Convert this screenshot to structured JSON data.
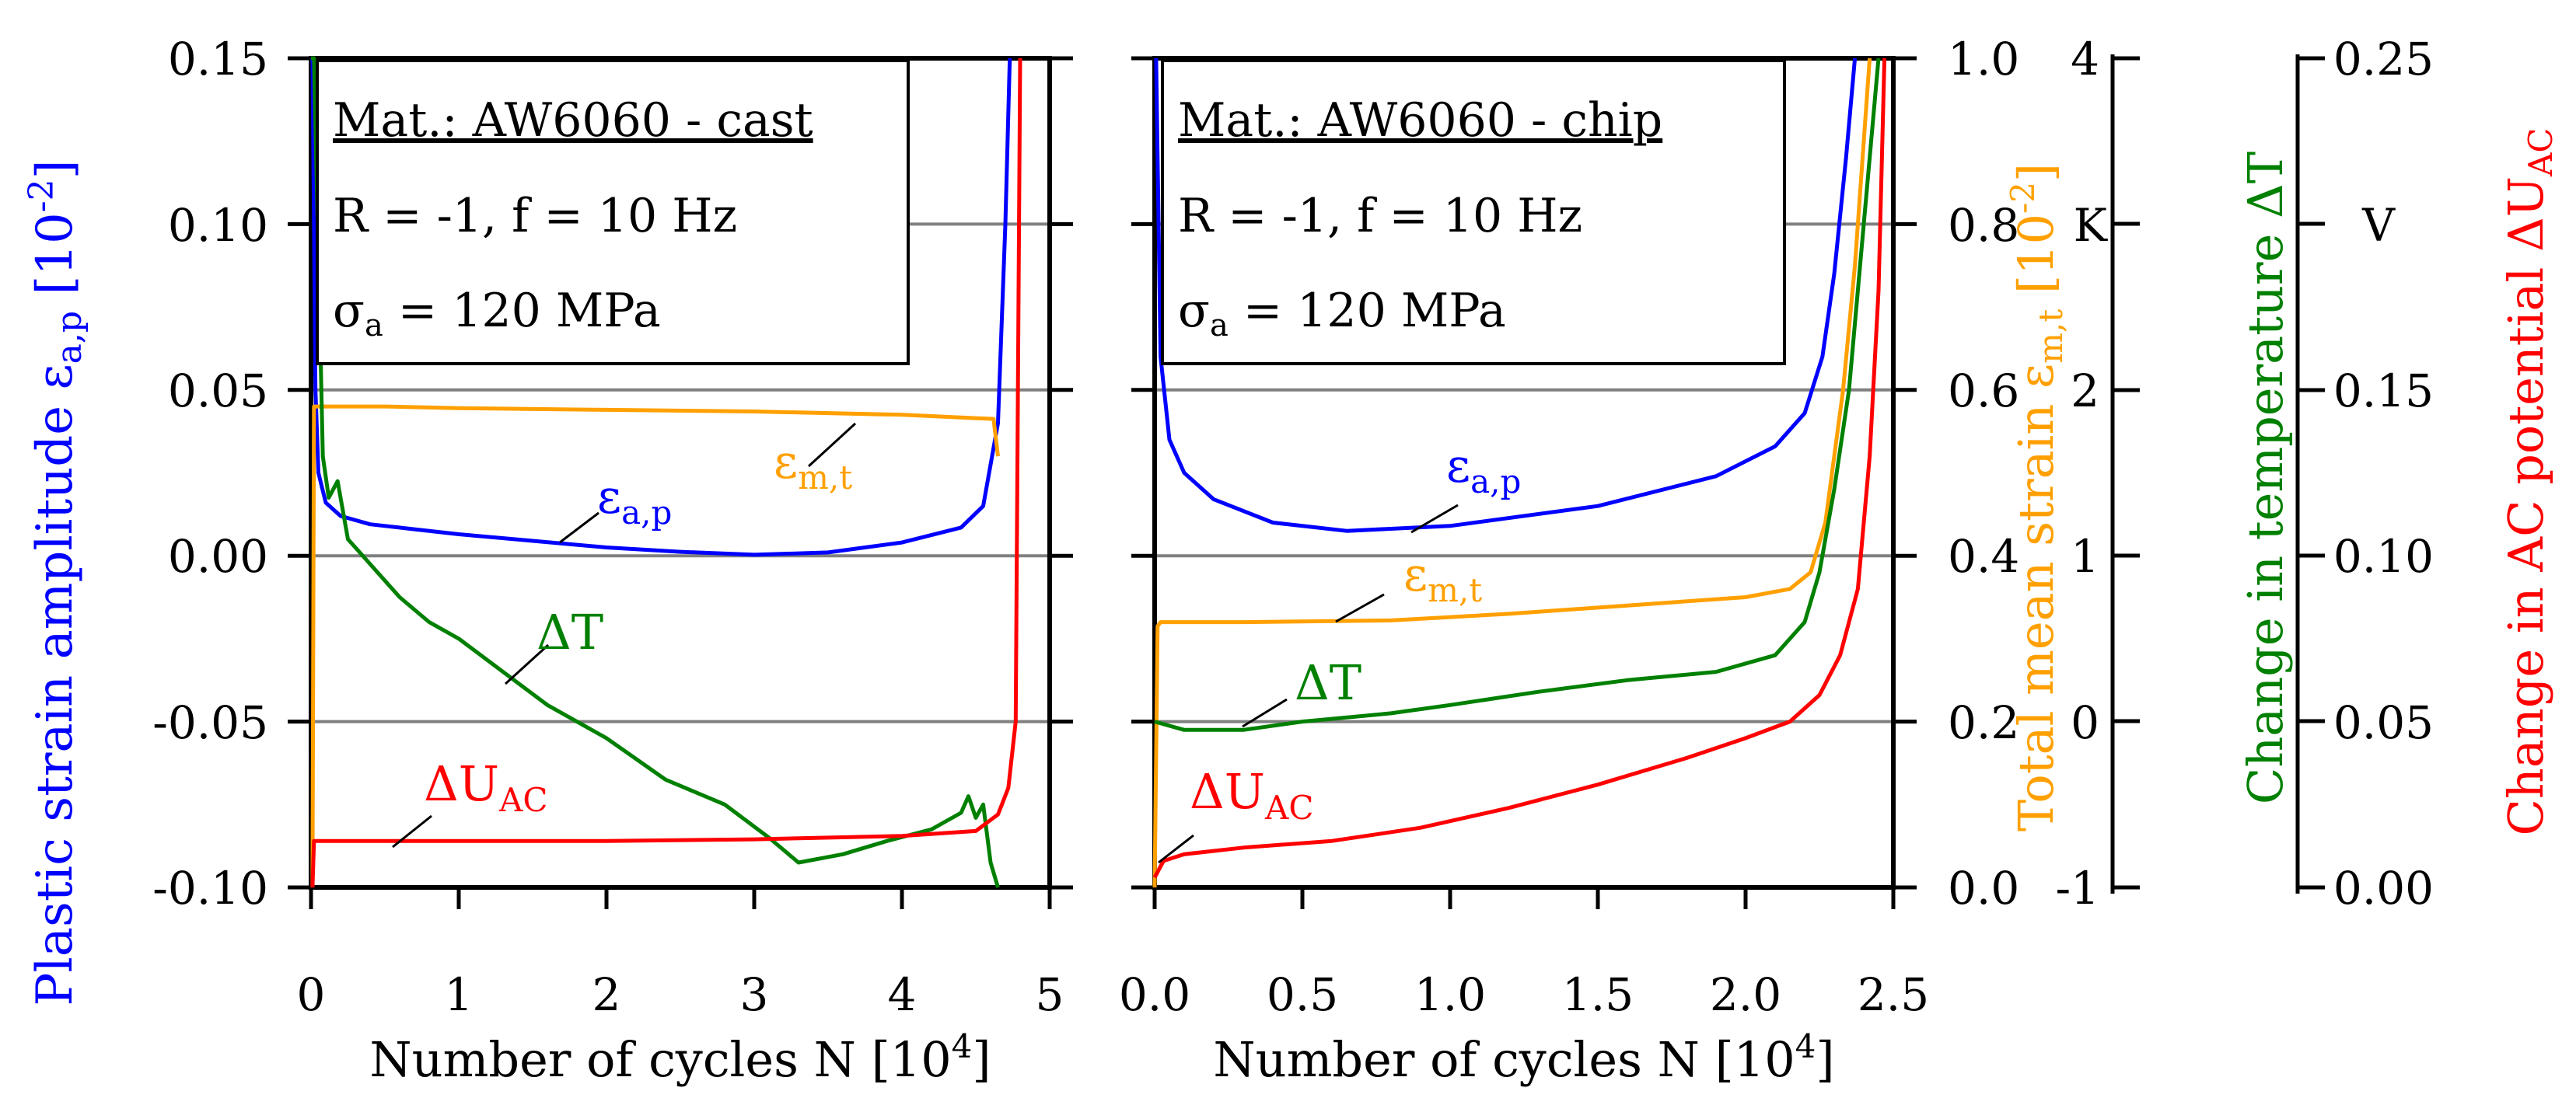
{
  "colors": {
    "axis": "#000000",
    "grid": "#808080",
    "plastic": "#0000ff",
    "mean": "#ffa000",
    "temp": "#008000",
    "ac": "#ff0000"
  },
  "axes_labels": {
    "plastic_prefix": "Plastic strain amplitude ε",
    "plastic_sub": "a,p",
    "plastic_suffix": " [10",
    "plastic_sup": "-2",
    "plastic_close": "]",
    "mean_prefix": "Total mean strain ε",
    "mean_sub": "m,t",
    "mean_suffix": " [10",
    "mean_sup": "-2",
    "mean_close": "]",
    "temp_label": "Change in temperature ΔT",
    "ac_prefix": "Change in AC potential ΔU",
    "ac_sub": "AC",
    "xlabel_left": "Number of cycles N [10",
    "xlabel_left_sup": "4",
    "xlabel_left_close": "]",
    "xlabel_right": "Number of cycles N [10",
    "xlabel_right_sup": "4",
    "xlabel_right_close": "]"
  },
  "ticks": {
    "plastic": [
      "0.15",
      "0.10",
      "0.05",
      "0.00",
      "-0.05",
      "-0.10"
    ],
    "left_x": [
      "0",
      "1",
      "2",
      "3",
      "4",
      "5"
    ],
    "right_x": [
      "0.0",
      "0.5",
      "1.0",
      "1.5",
      "2.0",
      "2.5"
    ],
    "mean": [
      "1.0",
      "0.8",
      "0.6",
      "0.4",
      "0.2",
      "0.0"
    ],
    "temp": [
      "4",
      "K",
      "2",
      "1",
      "0",
      "-1"
    ],
    "ac": [
      "0.25",
      "V",
      "0.15",
      "0.10",
      "0.05",
      "0.00"
    ]
  },
  "legend_left": {
    "mat": "Mat.: AW6060 - cast",
    "cond": "R = -1, f = 10 Hz",
    "stress_sym": "σ",
    "stress_sub": "a",
    "stress_val": " = 120 MPa"
  },
  "legend_right": {
    "mat": "Mat.: AW6060 - chip",
    "cond": "R = -1, f = 10 Hz",
    "stress_sym": "σ",
    "stress_sub": "a",
    "stress_val": " = 120 MPa"
  },
  "annotations": {
    "eps_ap": "ε",
    "eps_ap_sub": "a,p",
    "eps_mt": "ε",
    "eps_mt_sub": "m,t",
    "dT": "ΔT",
    "dU": "ΔU",
    "dU_sub": "AC"
  },
  "chart_data": [
    {
      "type": "line",
      "title": "Mat.: AW6060 - cast",
      "xlabel": "Number of cycles N [10^4]",
      "ylabel": "Plastic strain amplitude ε_a,p [10^-2]",
      "xlim": [
        0,
        5
      ],
      "ylim": [
        -0.1,
        0.15
      ],
      "right_axes": [
        {
          "label": "Total mean strain ε_m,t [10^-2]",
          "range": [
            0.0,
            1.0
          ]
        },
        {
          "label": "Change in temperature ΔT (K)",
          "range": [
            -1,
            4
          ]
        },
        {
          "label": "Change in AC potential ΔU_AC (V)",
          "range": [
            0.0,
            0.25
          ]
        }
      ],
      "series": [
        {
          "name": "ε_a,p",
          "axis": "plastic",
          "x": [
            0.01,
            0.03,
            0.05,
            0.1,
            0.2,
            0.4,
            0.7,
            1.0,
            1.5,
            2.0,
            2.5,
            3.0,
            3.5,
            4.0,
            4.4,
            4.55,
            4.65,
            4.7,
            4.73
          ],
          "y": [
            0.15,
            0.05,
            0.025,
            0.016,
            0.012,
            0.0095,
            0.008,
            0.0065,
            0.0045,
            0.0025,
            0.0012,
            0.0003,
            0.001,
            0.004,
            0.0085,
            0.015,
            0.04,
            0.1,
            0.15
          ]
        },
        {
          "name": "ε_m,t",
          "axis": "mean",
          "x": [
            0.01,
            0.02,
            0.04,
            0.5,
            1.0,
            2.0,
            3.0,
            4.0,
            4.5,
            4.62,
            4.65
          ],
          "y": [
            0.0,
            0.58,
            0.58,
            0.58,
            0.578,
            0.576,
            0.574,
            0.57,
            0.566,
            0.565,
            0.52
          ]
        },
        {
          "name": "ΔT",
          "axis": "temp",
          "x": [
            0.0,
            0.02,
            0.05,
            0.08,
            0.12,
            0.18,
            0.25,
            0.3,
            0.4,
            0.6,
            0.8,
            1.0,
            1.3,
            1.6,
            2.0,
            2.4,
            2.8,
            3.1,
            3.3,
            3.6,
            3.9,
            4.2,
            4.4,
            4.45,
            4.5,
            4.55,
            4.6,
            4.65
          ],
          "y": [
            4.0,
            4.0,
            2.8,
            1.6,
            1.35,
            1.45,
            1.1,
            1.05,
            0.95,
            0.75,
            0.6,
            0.5,
            0.3,
            0.1,
            -0.1,
            -0.35,
            -0.5,
            -0.7,
            -0.85,
            -0.8,
            -0.72,
            -0.65,
            -0.55,
            -0.45,
            -0.58,
            -0.5,
            -0.85,
            -1.0
          ]
        },
        {
          "name": "ΔU_AC",
          "axis": "ac",
          "x": [
            0.01,
            0.02,
            0.2,
            1.0,
            2.0,
            3.0,
            4.0,
            4.5,
            4.65,
            4.72,
            4.77,
            4.8
          ],
          "y": [
            0.0,
            0.014,
            0.014,
            0.014,
            0.014,
            0.0145,
            0.0155,
            0.017,
            0.022,
            0.03,
            0.05,
            0.25
          ]
        }
      ]
    },
    {
      "type": "line",
      "title": "Mat.: AW6060 - chip",
      "xlabel": "Number of cycles N [10^4]",
      "ylabel": "Plastic strain amplitude ε_a,p [10^-2]",
      "xlim": [
        0.0,
        2.5
      ],
      "ylim": [
        -0.1,
        0.15
      ],
      "right_axes": [
        {
          "label": "Total mean strain ε_m,t [10^-2]",
          "range": [
            0.0,
            1.0
          ]
        },
        {
          "label": "Change in temperature ΔT (K)",
          "range": [
            -1,
            4
          ]
        },
        {
          "label": "Change in AC potential ΔU_AC (V)",
          "range": [
            0.0,
            0.25
          ]
        }
      ],
      "series": [
        {
          "name": "ε_a,p",
          "axis": "plastic",
          "x": [
            0.005,
            0.02,
            0.05,
            0.1,
            0.2,
            0.4,
            0.65,
            1.0,
            1.5,
            1.9,
            2.1,
            2.2,
            2.26,
            2.3,
            2.34,
            2.37
          ],
          "y": [
            0.15,
            0.06,
            0.035,
            0.025,
            0.017,
            0.01,
            0.0075,
            0.009,
            0.015,
            0.024,
            0.033,
            0.043,
            0.06,
            0.085,
            0.12,
            0.15
          ]
        },
        {
          "name": "ε_m,t",
          "axis": "mean",
          "x": [
            0.0,
            0.01,
            0.02,
            0.3,
            0.8,
            1.2,
            1.6,
            2.0,
            2.15,
            2.22,
            2.27,
            2.3,
            2.33,
            2.37,
            2.4,
            2.42
          ],
          "y": [
            0.0,
            0.315,
            0.32,
            0.32,
            0.322,
            0.33,
            0.34,
            0.35,
            0.36,
            0.38,
            0.44,
            0.52,
            0.6,
            0.75,
            0.9,
            1.0
          ]
        },
        {
          "name": "ΔT",
          "axis": "temp",
          "x": [
            0.0,
            0.1,
            0.3,
            0.5,
            0.8,
            1.0,
            1.3,
            1.6,
            1.9,
            2.1,
            2.2,
            2.25,
            2.3,
            2.35,
            2.4,
            2.43,
            2.45
          ],
          "y": [
            0.0,
            -0.05,
            -0.05,
            0.0,
            0.05,
            0.1,
            0.18,
            0.25,
            0.3,
            0.4,
            0.6,
            0.9,
            1.4,
            2.0,
            3.0,
            3.6,
            4.0
          ]
        },
        {
          "name": "ΔU_AC",
          "axis": "ac",
          "x": [
            0.0,
            0.03,
            0.1,
            0.3,
            0.6,
            0.9,
            1.2,
            1.5,
            1.8,
            2.0,
            2.15,
            2.25,
            2.32,
            2.38,
            2.42,
            2.45,
            2.47
          ],
          "y": [
            0.003,
            0.008,
            0.01,
            0.012,
            0.014,
            0.018,
            0.024,
            0.031,
            0.039,
            0.045,
            0.05,
            0.058,
            0.07,
            0.09,
            0.13,
            0.18,
            0.25
          ]
        }
      ]
    }
  ]
}
